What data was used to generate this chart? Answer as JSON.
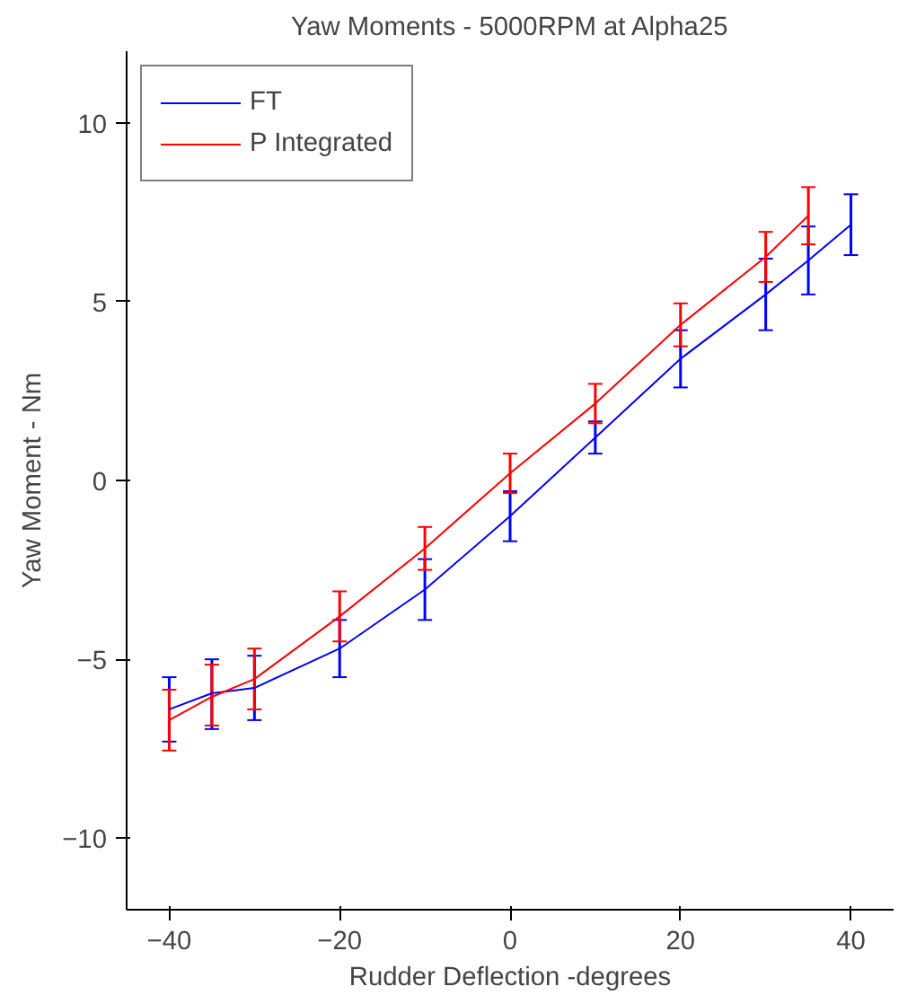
{
  "chart_data": {
    "type": "line",
    "title": "Yaw Moments - 5000RPM at Alpha25",
    "xlabel": "Rudder Deflection -degrees",
    "ylabel": "Yaw Moment - Nm",
    "xlim": [
      -45,
      45
    ],
    "ylim": [
      -12,
      12
    ],
    "xticks": [
      -40,
      -20,
      0,
      20,
      40
    ],
    "yticks": [
      -10,
      -5,
      0,
      5,
      10
    ],
    "grid": false,
    "legend": "top left",
    "marker": "none",
    "line_style": "solid",
    "series": [
      {
        "name": "FT",
        "color": "#0000ff",
        "x": [
          -40,
          -35,
          -30,
          -20,
          -10,
          0,
          10,
          20,
          30,
          35,
          40
        ],
        "values": [
          -6.4,
          -5.95,
          -5.8,
          -4.7,
          -3.05,
          -1.0,
          1.2,
          3.4,
          5.2,
          6.15,
          7.15
        ],
        "errors": [
          0.9,
          [
            -6.95,
            -5.0
          ],
          0.9,
          0.8,
          0.85,
          0.7,
          0.45,
          0.8,
          1.0,
          0.95,
          0.85
        ]
      },
      {
        "name": "P Integrated",
        "color": "#ff0000",
        "x": [
          -40,
          -35,
          -30,
          -20,
          -10,
          0,
          10,
          20,
          30,
          35
        ],
        "values": [
          -6.7,
          -6.05,
          -5.55,
          -3.8,
          -1.9,
          0.2,
          2.15,
          4.35,
          6.25,
          7.4
        ],
        "errors": [
          0.85,
          [
            -6.85,
            -5.15
          ],
          0.85,
          0.7,
          0.6,
          0.55,
          0.55,
          0.6,
          0.7,
          0.8
        ]
      }
    ]
  }
}
